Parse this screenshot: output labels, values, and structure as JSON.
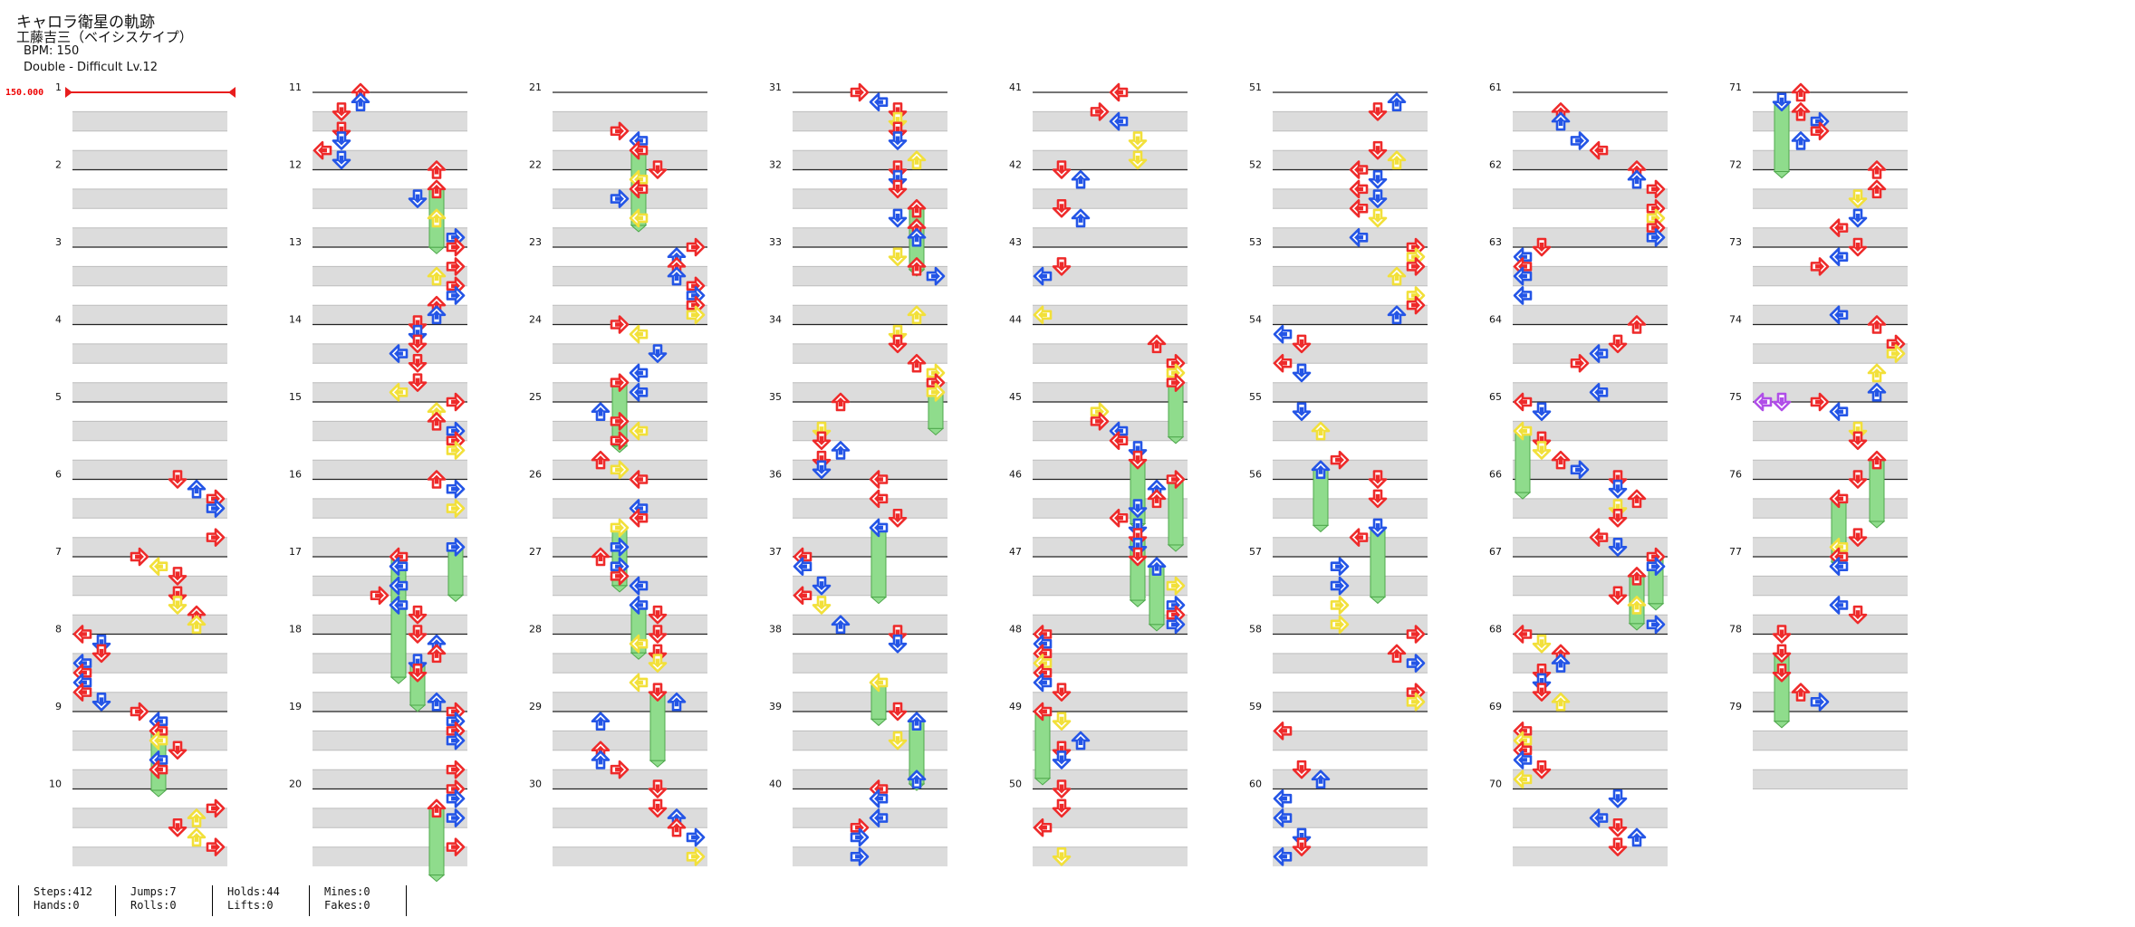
{
  "song": {
    "title": "キャロラ衛星の軌跡",
    "artist": "工藤吉三（ベイシスケイプ）",
    "bpm_label": "BPM: 150",
    "difficulty_label": "Double - Difficult  Lv.12"
  },
  "bpm_marker": "150.000",
  "measure_count": 79,
  "arrow_colors": {
    "quarter": "#ee2a2a",
    "eighth": "#2455e6",
    "sixteenth": "#f2e03a",
    "other": "#b04ee8",
    "hold": "#8fdc8c"
  },
  "stats": [
    {
      "key": "steps",
      "label": "Steps:412"
    },
    {
      "key": "hands",
      "label": "Hands:0"
    },
    {
      "key": "jumps",
      "label": "Jumps:7"
    },
    {
      "key": "rolls",
      "label": "Rolls:0"
    },
    {
      "key": "holds",
      "label": "Holds:44"
    },
    {
      "key": "lifts",
      "label": "Lifts:0"
    },
    {
      "key": "mines",
      "label": "Mines:0"
    },
    {
      "key": "fakes",
      "label": "Fakes:0"
    }
  ]
}
